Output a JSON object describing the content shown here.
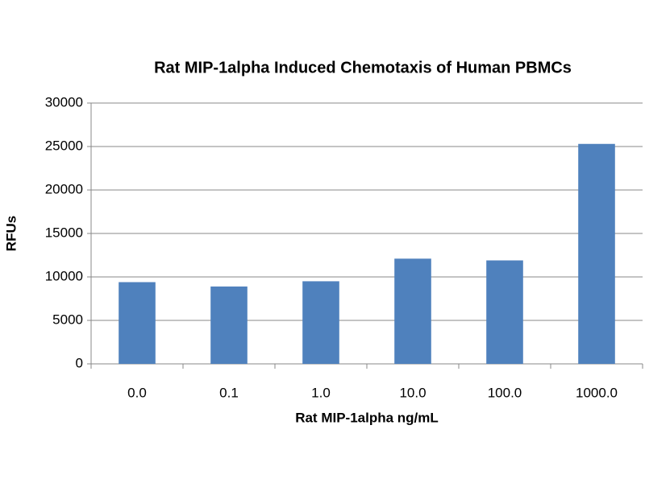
{
  "chart_data": {
    "type": "bar",
    "title": "Rat MIP-1alpha Induced Chemotaxis of Human PBMCs",
    "x_label": "Rat MIP-1alpha ng/mL",
    "y_label": "RFUs",
    "categories": [
      "0.0",
      "0.1",
      "1.0",
      "10.0",
      "100.0",
      "1000.0"
    ],
    "values": [
      9400,
      8900,
      9500,
      12100,
      11900,
      25300
    ],
    "color": "#4f81bd",
    "ylim": [
      0,
      30000
    ],
    "yticks": [
      0,
      5000,
      10000,
      15000,
      20000,
      25000,
      30000
    ],
    "grid": true
  }
}
